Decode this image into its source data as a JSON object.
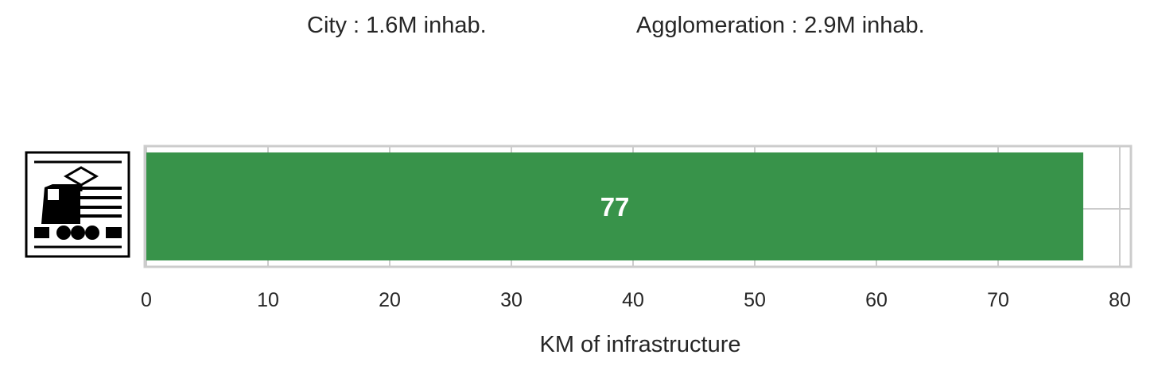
{
  "header": {
    "city": "City : 1.6M inhab.",
    "agglomeration": "Agglomeration : 2.9M inhab."
  },
  "icon": {
    "name": "electric-train-icon"
  },
  "chart_data": {
    "type": "bar",
    "orientation": "horizontal",
    "categories": [
      ""
    ],
    "values": [
      77
    ],
    "data_labels": [
      "77"
    ],
    "xlabel": "KM of infrastructure",
    "ylabel": "",
    "xlim": [
      0,
      80
    ],
    "xticks": [
      0,
      10,
      20,
      30,
      40,
      50,
      60,
      70,
      80
    ],
    "grid": true,
    "bar_color": "#38934a",
    "grid_color": "#cccccc"
  }
}
